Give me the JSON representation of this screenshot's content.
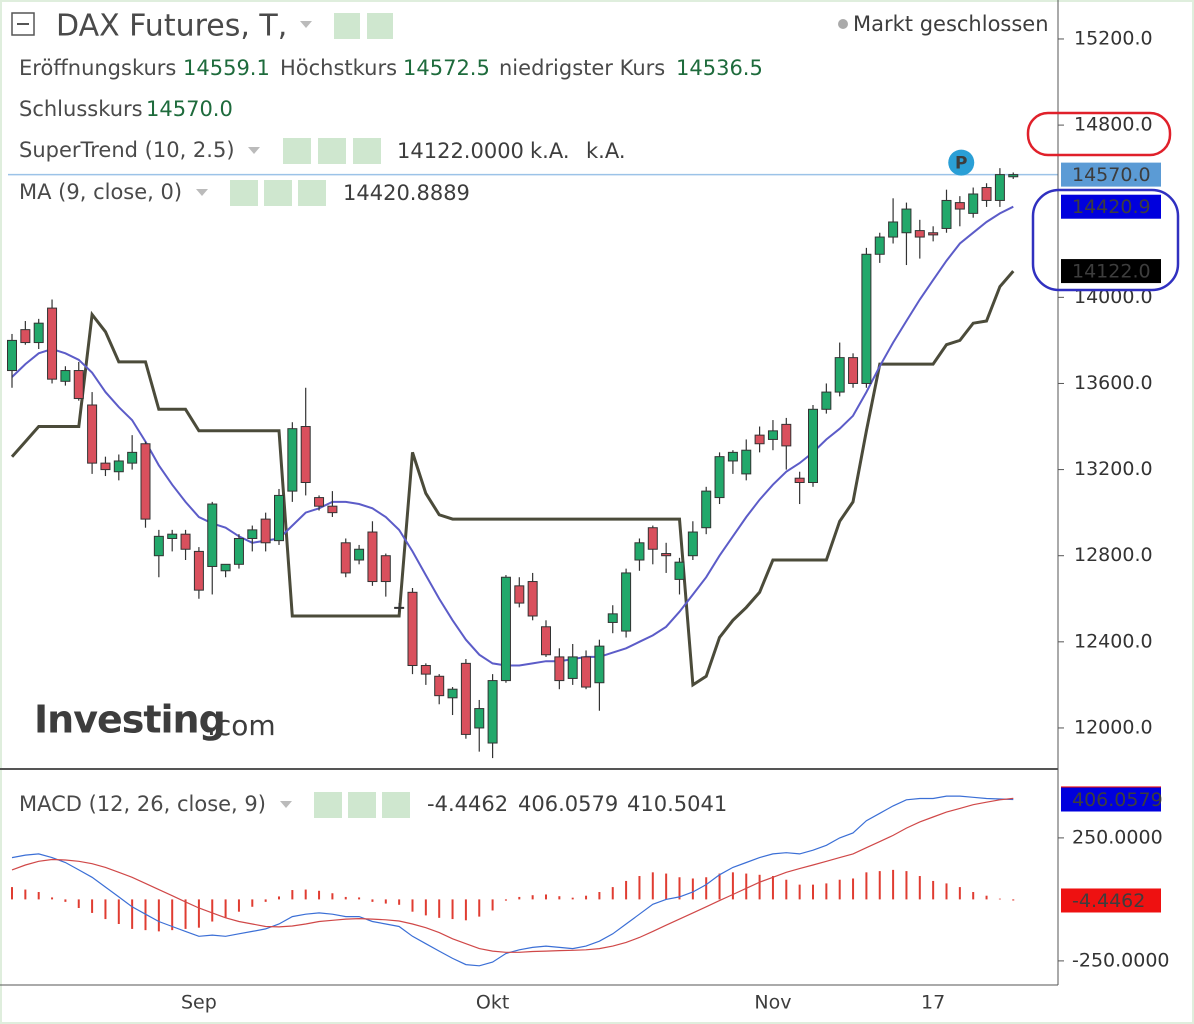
{
  "header": {
    "title": "DAX Futures, T,",
    "status": "Markt geschlossen",
    "quote": [
      {
        "label": "Eröffnungskurs",
        "value": "14559.1"
      },
      {
        "label": "Höchstkurs",
        "value": "14572.5"
      },
      {
        "label": "niedrigster Kurs",
        "value": "14536.5"
      },
      {
        "label": "Schlusskurs",
        "value": "14570.0"
      }
    ],
    "logo": [
      "Investing",
      ".com"
    ]
  },
  "chart_data": [
    {
      "type": "candlestick",
      "up_color": "#22a86b",
      "down_color": "#d9505d",
      "ylim": [
        11814,
        15381
      ],
      "yticks": [
        {
          "value": 15200,
          "label": "15200.0"
        },
        {
          "value": 14800,
          "label": "14800.0"
        },
        {
          "value": 14000,
          "label": "14000.0"
        },
        {
          "value": 13600,
          "label": "13600.0"
        },
        {
          "value": 13200,
          "label": "13200.0"
        },
        {
          "value": 12800,
          "label": "12800.0"
        },
        {
          "value": 12400,
          "label": "12400.0"
        },
        {
          "value": 12000,
          "label": "12000.0"
        }
      ],
      "last_label": "14570.0",
      "last_color": "#5b9bd5",
      "marker_label": "P",
      "open": [
        13660,
        13850,
        13790,
        13950,
        13610,
        13660,
        13500,
        13230,
        13190,
        13230,
        13320,
        12800,
        12880,
        12900,
        12820,
        12750,
        12730,
        12760,
        12880,
        12970,
        12870,
        13100,
        13400,
        13070,
        13030,
        12860,
        12780,
        12910,
        12800,
        12560,
        12630,
        12290,
        12240,
        12140,
        12300,
        12000,
        11930,
        12220,
        12660,
        12680,
        12470,
        12330,
        12230,
        12330,
        12210,
        12490,
        12450,
        12780,
        12930,
        12810,
        12690,
        12800,
        12930,
        13070,
        13240,
        13180,
        13360,
        13340,
        13410,
        13160,
        13140,
        13480,
        13560,
        13720,
        13600,
        14200,
        14280,
        14300,
        14310,
        14300,
        14320,
        14440,
        14390,
        14510,
        14450,
        14560
      ],
      "high": [
        13830,
        13890,
        13900,
        13990,
        13680,
        13700,
        13560,
        13260,
        13270,
        13360,
        13330,
        12920,
        12920,
        12920,
        12840,
        13050,
        12760,
        12900,
        12940,
        13000,
        13110,
        13420,
        13580,
        13080,
        13100,
        12880,
        12850,
        12960,
        12810,
        12580,
        12650,
        12300,
        12250,
        12190,
        12320,
        12130,
        12250,
        12710,
        12700,
        12720,
        12500,
        12370,
        12390,
        12360,
        12410,
        12570,
        12740,
        12880,
        12940,
        12860,
        12790,
        12960,
        13120,
        13280,
        13290,
        13340,
        13400,
        13430,
        13440,
        13190,
        13500,
        13600,
        13790,
        13740,
        14230,
        14300,
        14460,
        14440,
        14360,
        14330,
        14500,
        14470,
        14510,
        14530,
        14600,
        14580
      ],
      "low": [
        13580,
        13780,
        13760,
        13600,
        13590,
        13520,
        13180,
        13170,
        13150,
        13200,
        12930,
        12700,
        12820,
        12780,
        12600,
        12620,
        12700,
        12740,
        12820,
        12820,
        12850,
        13050,
        13080,
        13010,
        12980,
        12700,
        12760,
        12660,
        12610,
        12540,
        12250,
        12200,
        12110,
        12060,
        11950,
        11890,
        11860,
        12210,
        12560,
        12500,
        12330,
        12180,
        12200,
        12180,
        12080,
        12440,
        12420,
        12730,
        12760,
        12720,
        12620,
        12780,
        12900,
        13040,
        13180,
        13150,
        13280,
        13290,
        13200,
        13040,
        13120,
        13460,
        13540,
        13580,
        13580,
        14160,
        14250,
        14150,
        14180,
        14260,
        14300,
        14330,
        14370,
        14420,
        14420,
        14550
      ],
      "close": [
        13800,
        13790,
        13880,
        13620,
        13660,
        13530,
        13230,
        13200,
        13240,
        13280,
        12970,
        12890,
        12900,
        12830,
        12640,
        13040,
        12760,
        12880,
        12920,
        12860,
        13080,
        13390,
        13140,
        13030,
        13000,
        12720,
        12830,
        12680,
        12680,
        12560,
        12290,
        12250,
        12150,
        12180,
        11970,
        12090,
        12220,
        12700,
        12580,
        12520,
        12340,
        12220,
        12330,
        12190,
        12380,
        12530,
        12720,
        12860,
        12830,
        12800,
        12770,
        12910,
        13100,
        13260,
        13280,
        13290,
        13320,
        13380,
        13310,
        13140,
        13480,
        13560,
        13720,
        13600,
        14200,
        14280,
        14350,
        14410,
        14280,
        14290,
        14450,
        14410,
        14480,
        14450,
        14570,
        14570
      ],
      "series": [
        {
          "name": "SuperTrend (10, 2.5)",
          "color": "#4b4b3a",
          "label_color": "#000000",
          "legend_values": [
            "14122.0000",
            "k.A.",
            "k.A."
          ],
          "axis_label": "14122.0",
          "values": [
            13260,
            13330,
            13400,
            13400,
            13400,
            13400,
            13920,
            13840,
            13700,
            13700,
            13700,
            13480,
            13480,
            13480,
            13380,
            13380,
            13380,
            13380,
            13380,
            13380,
            13380,
            12520,
            12520,
            12520,
            12520,
            12520,
            12520,
            12520,
            12520,
            12520,
            13280,
            13090,
            12990,
            12970,
            12970,
            12970,
            12970,
            12970,
            12970,
            12970,
            12970,
            12970,
            12970,
            12970,
            12970,
            12970,
            12970,
            12970,
            12970,
            12970,
            12970,
            12200,
            12240,
            12420,
            12500,
            12560,
            12630,
            12780,
            12780,
            12780,
            12780,
            12780,
            12960,
            13050,
            13380,
            13690,
            13690,
            13690,
            13690,
            13690,
            13780,
            13800,
            13880,
            13890,
            14050,
            14122
          ]
        },
        {
          "name": "MA (9, close, 0)",
          "color": "#5c5cc8",
          "label_color": "#0000dd",
          "legend_values": [
            "14420.8889"
          ],
          "axis_label": "14420.9",
          "values": [
            13630,
            13690,
            13740,
            13760,
            13740,
            13710,
            13650,
            13560,
            13490,
            13430,
            13330,
            13220,
            13130,
            13050,
            12980,
            12950,
            12930,
            12890,
            12860,
            12870,
            12880,
            12940,
            13000,
            13020,
            13050,
            13050,
            13040,
            13020,
            12980,
            12920,
            12820,
            12710,
            12600,
            12500,
            12410,
            12340,
            12300,
            12290,
            12290,
            12300,
            12310,
            12310,
            12320,
            12330,
            12330,
            12350,
            12370,
            12400,
            12430,
            12470,
            12540,
            12620,
            12700,
            12800,
            12890,
            12980,
            13060,
            13130,
            13190,
            13230,
            13280,
            13340,
            13390,
            13450,
            13560,
            13680,
            13790,
            13890,
            13990,
            14080,
            14170,
            14250,
            14300,
            14350,
            14390,
            14420.8889
          ]
        }
      ]
    },
    {
      "type": "macd",
      "title": "MACD (12, 26, close, 9)",
      "ylim": [
        -348,
        526
      ],
      "yticks": [
        {
          "value": 250,
          "label": "250.0000"
        },
        {
          "value": -250,
          "label": "-250.0000"
        }
      ],
      "categories": [
        null,
        null,
        null,
        null,
        null,
        null,
        null,
        null,
        null,
        null,
        null,
        null,
        null,
        null,
        "Sep",
        null,
        null,
        null,
        null,
        null,
        null,
        null,
        null,
        null,
        null,
        null,
        null,
        null,
        null,
        null,
        null,
        null,
        null,
        null,
        null,
        null,
        "Okt",
        null,
        null,
        null,
        null,
        null,
        null,
        null,
        null,
        null,
        null,
        null,
        null,
        null,
        null,
        null,
        null,
        null,
        null,
        null,
        null,
        "Nov",
        null,
        null,
        null,
        null,
        null,
        null,
        null,
        null,
        null,
        null,
        null,
        "17",
        null,
        null,
        null,
        null,
        null,
        null
      ],
      "series": [
        {
          "style": "bars",
          "color": "#e03c31",
          "label_color": "#ee1111",
          "legend_value": "-4.4462",
          "axis_label": "-4.4462",
          "values": [
            50,
            40,
            30,
            8,
            -10,
            -35,
            -55,
            -80,
            -100,
            -120,
            -125,
            -130,
            -125,
            -120,
            -115,
            -90,
            -75,
            -50,
            -30,
            -10,
            12,
            38,
            40,
            35,
            25,
            10,
            8,
            -10,
            -17,
            -22,
            -50,
            -65,
            -75,
            -80,
            -85,
            -70,
            -45,
            -5,
            10,
            17,
            20,
            13,
            7,
            15,
            30,
            50,
            75,
            95,
            110,
            105,
            90,
            85,
            90,
            105,
            110,
            105,
            100,
            95,
            80,
            60,
            60,
            65,
            80,
            85,
            110,
            115,
            120,
            115,
            95,
            75,
            65,
            50,
            30,
            15,
            3,
            -4.4462
          ]
        },
        {
          "style": "line",
          "color": "#3b6fd6",
          "label_color": "#0000dd",
          "legend_value": "406.0579",
          "axis_label": "406.0579",
          "values": [
            170,
            180,
            185,
            170,
            150,
            120,
            90,
            50,
            10,
            -30,
            -60,
            -90,
            -110,
            -130,
            -150,
            -145,
            -150,
            -140,
            -130,
            -120,
            -100,
            -70,
            -60,
            -55,
            -60,
            -70,
            -70,
            -90,
            -100,
            -110,
            -150,
            -180,
            -210,
            -240,
            -265,
            -270,
            -255,
            -220,
            -205,
            -195,
            -190,
            -195,
            -200,
            -190,
            -170,
            -140,
            -100,
            -60,
            -20,
            0,
            10,
            30,
            60,
            100,
            130,
            150,
            170,
            185,
            190,
            185,
            200,
            220,
            250,
            270,
            320,
            350,
            380,
            405,
            410,
            410,
            420,
            420,
            415,
            410,
            408,
            406.0579
          ]
        },
        {
          "style": "line",
          "color": "#d04848",
          "label_color": "#ee1111",
          "legend_value": "410.5041",
          "axis_label": "410.5041",
          "values": [
            120,
            140,
            155,
            162,
            160,
            155,
            145,
            130,
            110,
            90,
            65,
            40,
            15,
            -10,
            -35,
            -55,
            -75,
            -90,
            -100,
            -110,
            -112,
            -108,
            -100,
            -90,
            -85,
            -80,
            -78,
            -80,
            -83,
            -88,
            -100,
            -115,
            -135,
            -160,
            -180,
            -200,
            -210,
            -215,
            -215,
            -212,
            -210,
            -208,
            -207,
            -205,
            -200,
            -190,
            -175,
            -155,
            -130,
            -105,
            -80,
            -55,
            -30,
            -5,
            20,
            45,
            70,
            90,
            110,
            125,
            140,
            155,
            170,
            185,
            210,
            235,
            260,
            290,
            315,
            335,
            355,
            370,
            385,
            395,
            405,
            410.5041
          ]
        }
      ]
    }
  ]
}
